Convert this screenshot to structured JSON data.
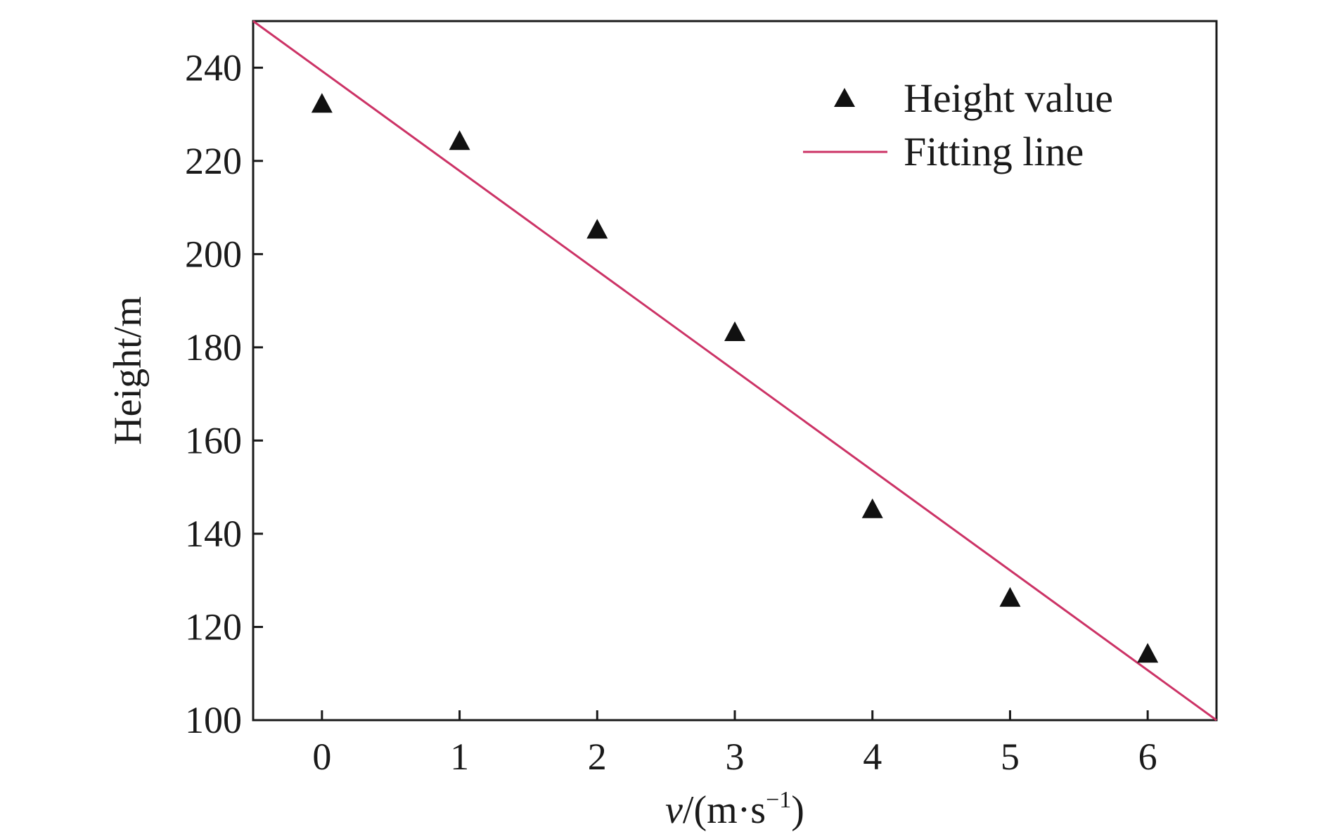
{
  "chart_data": {
    "type": "scatter",
    "title": "",
    "xlabel_italic": "v",
    "xlabel_rest": "/(m·s",
    "xlabel_sup": "−1",
    "xlabel_close": ")",
    "ylabel": "Height/m",
    "xlim": [
      -0.5,
      6.5
    ],
    "ylim": [
      100,
      250
    ],
    "xticks": [
      0,
      1,
      2,
      3,
      4,
      5,
      6
    ],
    "yticks": [
      100,
      120,
      140,
      160,
      180,
      200,
      220,
      240
    ],
    "grid": false,
    "legend_position": "top-right",
    "series": [
      {
        "name": "Height value",
        "kind": "scatter",
        "marker": "triangle",
        "color": "#111111",
        "x": [
          0,
          1,
          2,
          3,
          4,
          5,
          6
        ],
        "y": [
          232,
          224,
          205,
          183,
          145,
          126,
          114
        ]
      },
      {
        "name": "Fitting line",
        "kind": "line",
        "color": "#cc3366",
        "x": [
          -0.5,
          6.5
        ],
        "y": [
          250,
          100
        ]
      }
    ]
  }
}
